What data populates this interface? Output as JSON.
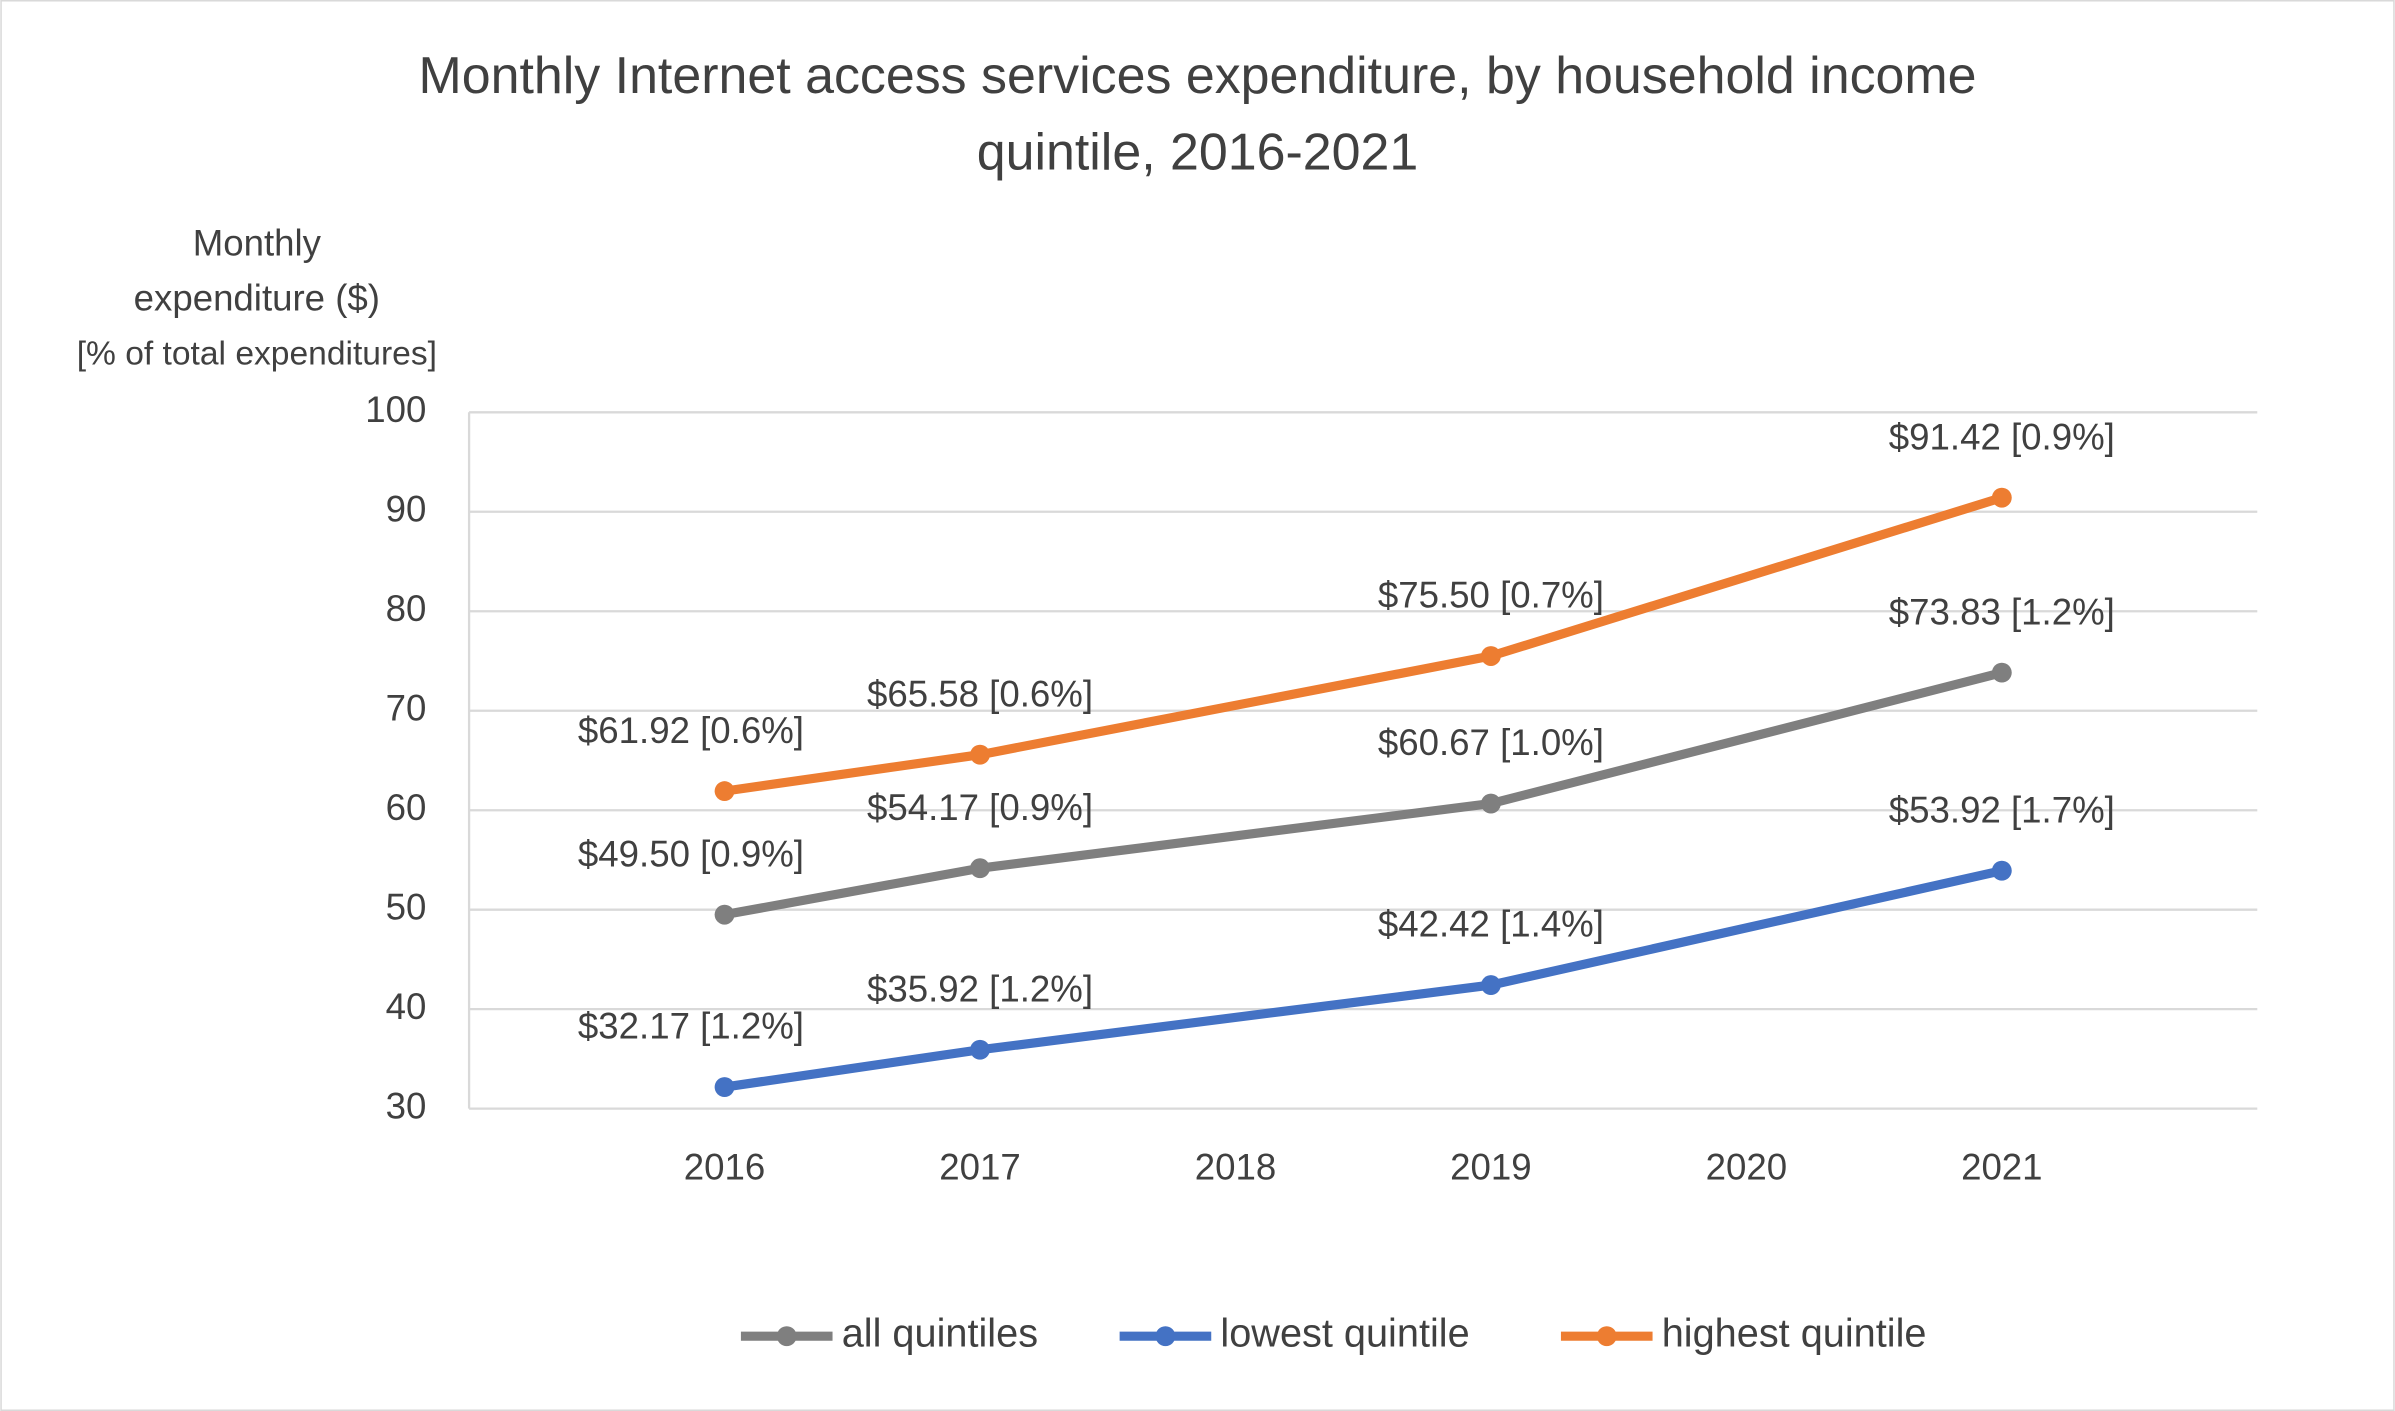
{
  "chart_data": {
    "type": "line",
    "title": [
      "Monthly Internet access services expenditure, by household income",
      "quintile, 2016-2021"
    ],
    "y_label": [
      "Monthly",
      "expenditure ($)",
      "[% of total expenditures]"
    ],
    "xlim": [
      2015,
      2022
    ],
    "xticks": [
      2016,
      2017,
      2018,
      2019,
      2020,
      2021
    ],
    "ylim": [
      30,
      100
    ],
    "yticks": [
      30,
      40,
      50,
      60,
      70,
      80,
      90,
      100
    ],
    "grid": true,
    "legend": "bottom",
    "series": [
      {
        "name": "all quintiles",
        "color": "#7f7f7f",
        "x": [
          2016,
          2017,
          2019,
          2021
        ],
        "values": [
          49.5,
          54.17,
          60.67,
          73.83
        ],
        "value_labels": [
          "$49.50 [0.9%]",
          "$54.17 [0.9%]",
          "$60.67 [1.0%]",
          "$73.83 [1.2%]"
        ]
      },
      {
        "name": "lowest quintile",
        "color": "#4472c4",
        "x": [
          2016,
          2017,
          2019,
          2021
        ],
        "values": [
          32.17,
          35.92,
          42.42,
          53.92
        ],
        "value_labels": [
          "$32.17 [1.2%]",
          "$35.92 [1.2%]",
          "$42.42 [1.4%]",
          "$53.92 [1.7%]"
        ]
      },
      {
        "name": "highest quintile",
        "color": "#ed7d31",
        "x": [
          2016,
          2017,
          2019,
          2021
        ],
        "values": [
          61.92,
          65.58,
          75.5,
          91.42
        ],
        "value_labels": [
          "$61.92 [0.6%]",
          "$65.58 [0.6%]",
          "$75.50 [0.7%]",
          "$91.42 [0.9%]"
        ]
      }
    ]
  }
}
